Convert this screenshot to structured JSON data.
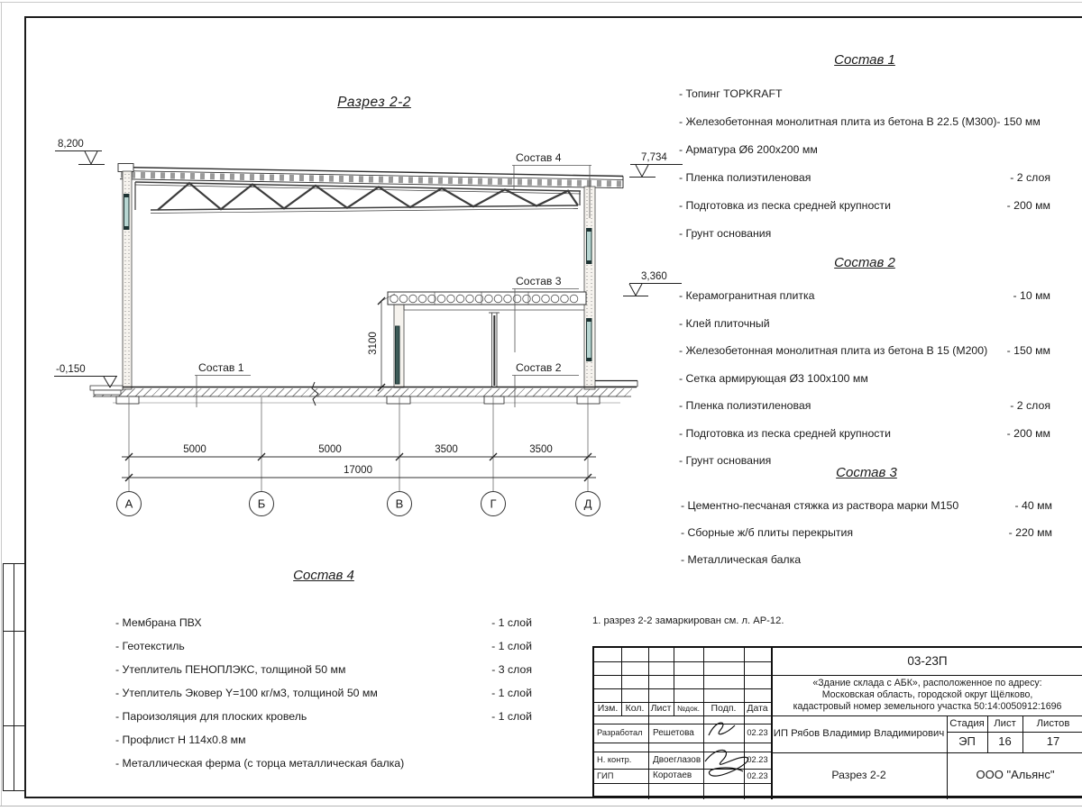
{
  "sheet": {
    "drawing_title": "Разрез 2-2",
    "note": "1. разрез 2-2 замаркирован см. л. АР-12."
  },
  "section": {
    "elevations": {
      "roof_left": "8,200",
      "roof_right": "7,734",
      "mezzanine": "3,360",
      "floor": "-0,150"
    },
    "leaders": {
      "s1": "Состав 1",
      "s2": "Состав 2",
      "s3": "Состав 3",
      "s4": "Состав 4"
    },
    "dims": {
      "ab": "5000",
      "bv": "5000",
      "vg": "3500",
      "gd": "3500",
      "total": "17000",
      "mezz_height": "3100"
    },
    "axes": [
      "А",
      "Б",
      "В",
      "Г",
      "Д"
    ]
  },
  "compositions": [
    {
      "title": "Состав 1",
      "items": [
        {
          "name": "- Топинг TOPKRAFT",
          "value": ""
        },
        {
          "name": "- Железобетонная  монолитная плита из бетона  В 22.5 (М300)- 150 мм",
          "value": ""
        },
        {
          "name": "- Арматура Ø6 200х200 мм",
          "value": ""
        },
        {
          "name": "- Пленка полиэтиленовая",
          "value": "-  2 слоя"
        },
        {
          "name": "- Подготовка из песка средней  крупности",
          "value": "- 200 мм"
        },
        {
          "name": "- Грунт основания",
          "value": ""
        }
      ]
    },
    {
      "title": "Состав 2",
      "items": [
        {
          "name": "- Керамогранитная плитка",
          "value": "- 10 мм"
        },
        {
          "name": "- Клей плиточный",
          "value": ""
        },
        {
          "name": "- Железобетонная  монолитная плита из бетона В 15 (М200)",
          "value": "- 150 мм"
        },
        {
          "name": "- Сетка армирующая Ø3 100х100 мм",
          "value": ""
        },
        {
          "name": "- Пленка полиэтиленовая",
          "value": "-  2 слоя"
        },
        {
          "name": "- Подготовка из песка средней  крупности",
          "value": "- 200 мм"
        },
        {
          "name": "- Грунт основания",
          "value": ""
        }
      ]
    },
    {
      "title": "Состав 3",
      "items": [
        {
          "name": "- Цементно-песчаная стяжка  из раствора марки М150",
          "value": "- 40 мм"
        },
        {
          "name": "- Сборные ж/б плиты перекрытия",
          "value": "- 220 мм"
        },
        {
          "name": "- Металлическая  балка",
          "value": ""
        }
      ]
    },
    {
      "title": "Состав 4",
      "items": [
        {
          "name": "- Мембрана ПВХ",
          "value": "- 1 слой"
        },
        {
          "name": "- Геотекстиль",
          "value": "- 1 слой"
        },
        {
          "name": "- Утеплитель ПЕНОПЛЭКС, толщиной 50 мм",
          "value": "- 3 слоя"
        },
        {
          "name": "- Утеплитель Эковер Y=100 кг/м3, толщиной 50 мм",
          "value": "- 1 слой"
        },
        {
          "name": "- Пароизоляция для плоских кровель",
          "value": "- 1 слой"
        },
        {
          "name": "- Профлист Н 114х0.8 мм",
          "value": ""
        },
        {
          "name": "- Металлическая ферма (с торца металлическая балка)",
          "value": ""
        }
      ]
    }
  ],
  "title_block": {
    "doc_number": "03-23П",
    "project_lines": [
      "«Здание склада с АБК», расположенное по адресу:",
      "Московская область, городской округ Щёлково,",
      "кадастровый номер земельного участка 50:14:0050912:1696"
    ],
    "col_headers": {
      "izm": "Изм.",
      "kol": "Кол.",
      "list": "Лист",
      "ndok": "№док.",
      "podp": "Подп.",
      "data": "Дата"
    },
    "staff": [
      {
        "role": "Разработал",
        "name": "Решетова",
        "date": "02.23"
      },
      {
        "role": "Н. контр.",
        "name": "Двоеглазов",
        "date": "02.23"
      },
      {
        "role": "ГИП",
        "name": "Коротаев",
        "date": "02.23"
      }
    ],
    "client": "ИП Рябов Владимир Владимирович",
    "stage_label": "Стадия",
    "list_label": "Лист",
    "listov_label": "Листов",
    "stage": "ЭП",
    "list_no": "16",
    "listov": "17",
    "bottom_title": "Разрез 2-2",
    "company": "ООО \"Альянс\""
  },
  "colors": {
    "line": "#2b2b2b",
    "glazing": "#b7d6d2",
    "glazing_dark": "#1e3434"
  }
}
